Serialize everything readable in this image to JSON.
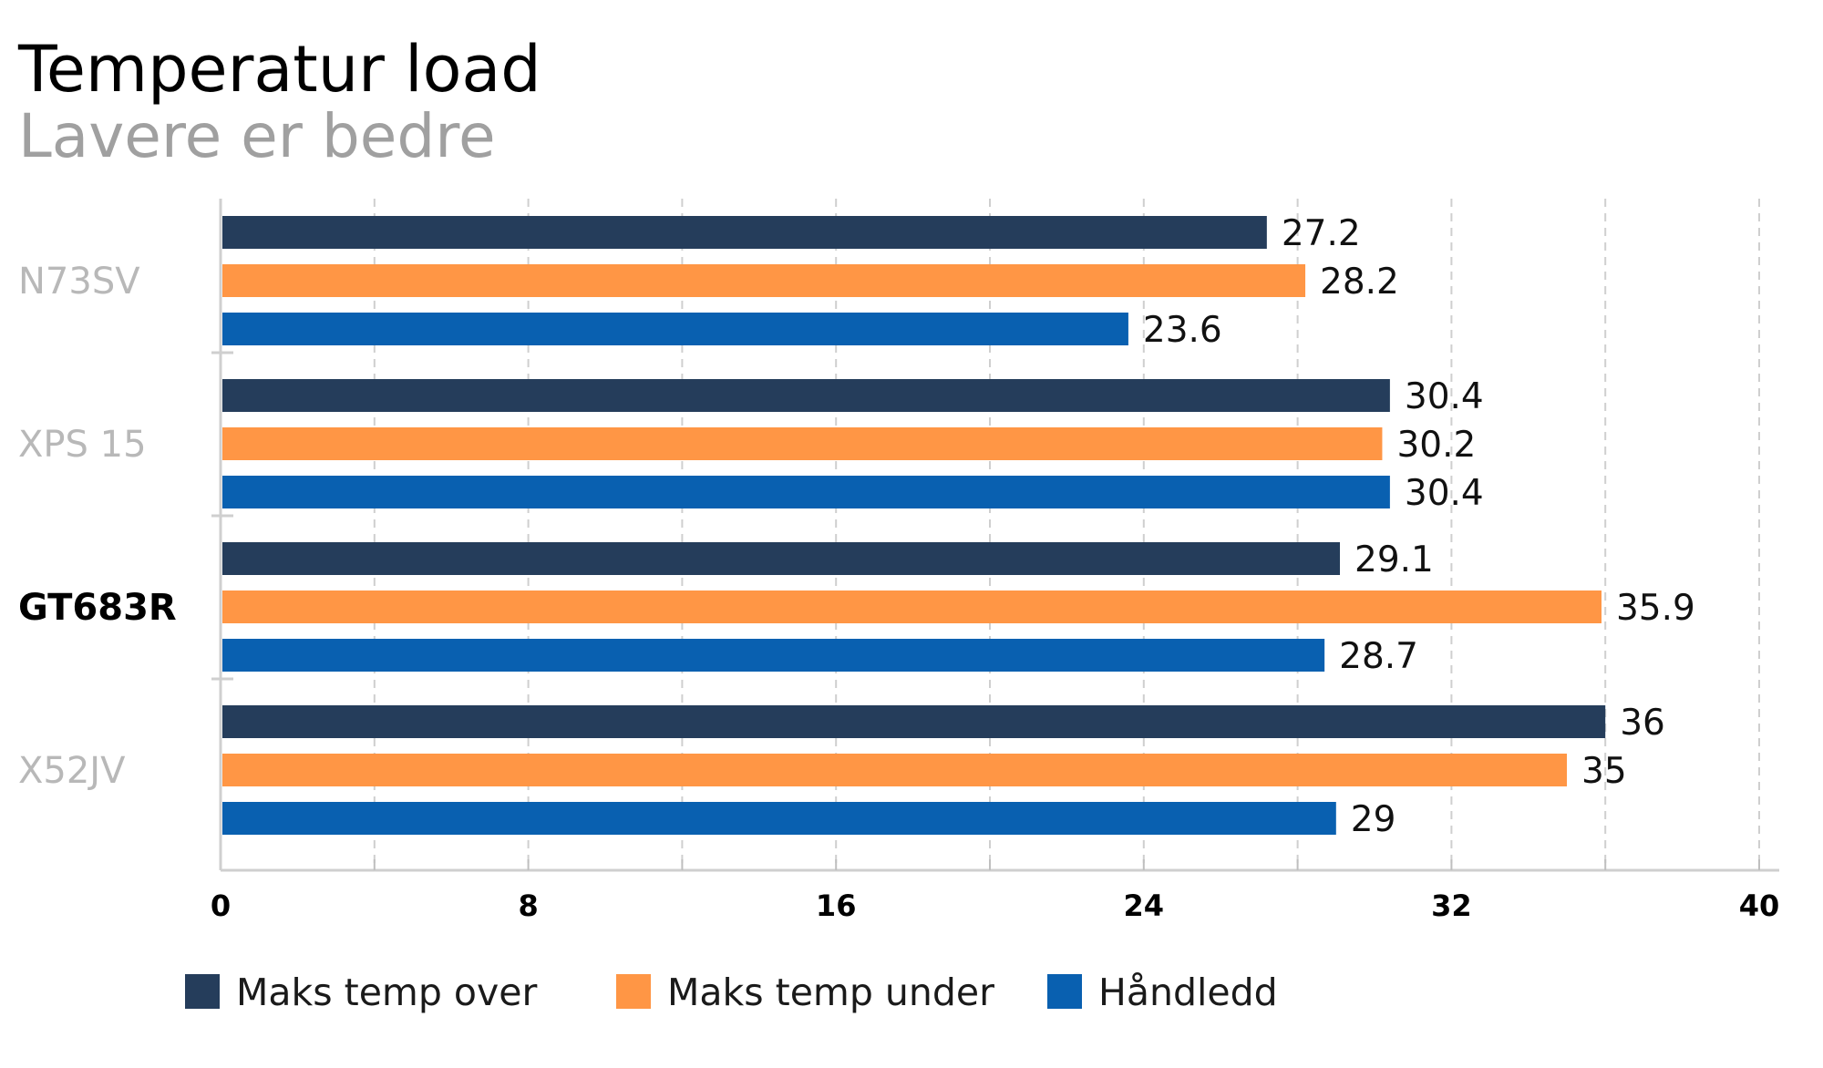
{
  "chart_data": {
    "type": "bar",
    "orientation": "horizontal",
    "title": "Temperatur load",
    "subtitle": "Lavere er bedre",
    "categories": [
      "N73SV",
      "XPS 15",
      "GT683R",
      "X52JV"
    ],
    "highlighted_category": "GT683R",
    "series": [
      {
        "name": "Maks temp over",
        "color": "#253d5b",
        "values": [
          27.2,
          30.4,
          29.1,
          36
        ]
      },
      {
        "name": "Maks temp under",
        "color": "#ff9645",
        "values": [
          28.2,
          30.2,
          35.9,
          35
        ]
      },
      {
        "name": "Håndledd",
        "color": "#0960b0",
        "values": [
          23.6,
          30.4,
          28.7,
          29
        ]
      }
    ],
    "value_labels": [
      [
        "27.2",
        "30.4",
        "29.1",
        "36"
      ],
      [
        "28.2",
        "30.2",
        "35.9",
        "35"
      ],
      [
        "23.6",
        "30.4",
        "28.7",
        "29"
      ]
    ],
    "x_ticks": [
      "0",
      "8",
      "16",
      "24",
      "32",
      "40"
    ],
    "xlim": [
      0,
      40
    ],
    "grid": true,
    "legend_position": "bottom"
  }
}
